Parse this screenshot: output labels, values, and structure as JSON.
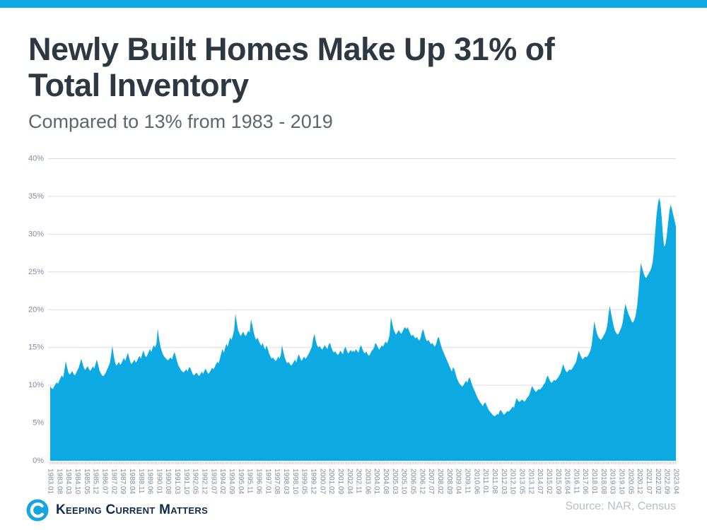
{
  "header": {
    "title_line1": "Newly Built Homes Make Up 31% of",
    "title_line2": "Total Inventory",
    "subtitle": "Compared to 13% from 1983 - 2019"
  },
  "chart_data": {
    "type": "area",
    "series_name": "Newly built homes share of total inventory",
    "unit": "%",
    "start": "1983.01",
    "end": "2023.04",
    "frequency": "monthly",
    "ylim": [
      0,
      40
    ],
    "grid": "horizontal",
    "legend": "none",
    "y_tick_labels": [
      "0%",
      "5%",
      "10%",
      "15%",
      "20%",
      "25%",
      "30%",
      "35%",
      "40%"
    ],
    "x_tick_interval_months": 7,
    "x_tick_labels": [
      "1983.01",
      "1983.08",
      "1984.03",
      "1984.10",
      "1985.05",
      "1985.12",
      "1986.07",
      "1987.02",
      "1987.09",
      "1988.04",
      "1988.11",
      "1989.06",
      "1990.01",
      "1990.08",
      "1991.03",
      "1991.10",
      "1992.05",
      "1992.12",
      "1993.07",
      "1994.02",
      "1994.09",
      "1995.04",
      "1995.11",
      "1996.06",
      "1997.01",
      "1997.08",
      "1998.03",
      "1998.10",
      "1999.05",
      "1999.12",
      "2000.07",
      "2001.02",
      "2001.09",
      "2002.04",
      "2002.11",
      "2003.06",
      "2004.01",
      "2004.08",
      "2005.03",
      "2005.10",
      "2006.05",
      "2006.12",
      "2007.07",
      "2008.02",
      "2008.09",
      "2009.04",
      "2009.11",
      "2010.06",
      "2011.01",
      "2011.08",
      "2012.03",
      "2012.10",
      "2013.05",
      "2013.12",
      "2014.07",
      "2015.02",
      "2015.09",
      "2016.04",
      "2016.11",
      "2017.06",
      "2018.01",
      "2018.08",
      "2019.03",
      "2019.10",
      "2020.05",
      "2020.12",
      "2021.07",
      "2022.02",
      "2022.09",
      "2023.04"
    ],
    "values": [
      9.9,
      9.6,
      9.5,
      9.8,
      10.1,
      10.4,
      10.2,
      10.6,
      11.0,
      11.3,
      11.0,
      12.0,
      13.2,
      12.4,
      11.7,
      11.4,
      11.6,
      11.9,
      11.5,
      11.3,
      11.6,
      12.0,
      12.3,
      12.9,
      13.5,
      12.9,
      12.3,
      12.0,
      12.3,
      12.5,
      12.1,
      11.9,
      12.2,
      12.5,
      12.2,
      12.8,
      13.4,
      12.7,
      12.0,
      11.6,
      11.3,
      11.2,
      11.4,
      11.7,
      12.1,
      12.5,
      12.9,
      14.0,
      15.2,
      14.0,
      13.1,
      12.6,
      12.8,
      13.1,
      12.7,
      12.9,
      13.3,
      13.6,
      13.2,
      13.8,
      14.3,
      13.6,
      13.0,
      12.8,
      13.1,
      13.4,
      13.0,
      13.2,
      13.6,
      13.9,
      13.5,
      14.1,
      14.6,
      14.0,
      13.7,
      14.0,
      14.4,
      14.8,
      14.4,
      14.9,
      15.3,
      15.0,
      15.5,
      17.5,
      16.2,
      15.2,
      14.6,
      14.1,
      13.8,
      13.6,
      13.4,
      13.3,
      13.5,
      13.7,
      13.4,
      14.0,
      14.4,
      13.8,
      13.1,
      12.6,
      12.3,
      12.0,
      11.8,
      11.7,
      11.9,
      12.1,
      11.8,
      12.3,
      12.4,
      11.9,
      11.5,
      11.3,
      11.5,
      11.7,
      11.4,
      11.2,
      11.5,
      11.8,
      11.5,
      11.9,
      12.2,
      11.8,
      11.5,
      11.7,
      12.0,
      12.3,
      12.1,
      12.4,
      12.8,
      13.1,
      12.9,
      13.5,
      14.2,
      14.8,
      14.3,
      14.9,
      15.5,
      15.1,
      15.8,
      16.3,
      16.0,
      16.6,
      17.3,
      19.5,
      18.3,
      17.3,
      16.9,
      16.5,
      16.8,
      17.1,
      16.7,
      16.5,
      16.9,
      17.2,
      17.0,
      18.7,
      18.0,
      17.1,
      16.4,
      16.0,
      16.3,
      15.9,
      15.5,
      15.2,
      15.6,
      15.1,
      14.7,
      15.3,
      14.8,
      14.2,
      13.8,
      13.5,
      13.7,
      13.4,
      13.2,
      13.4,
      13.8,
      13.5,
      14.0,
      15.3,
      14.4,
      13.7,
      13.2,
      12.9,
      13.1,
      12.8,
      12.6,
      12.8,
      13.1,
      13.4,
      13.0,
      13.7,
      14.1,
      13.6,
      13.2,
      13.5,
      13.8,
      13.5,
      13.7,
      14.0,
      14.3,
      14.7,
      15.1,
      16.2,
      16.8,
      15.9,
      15.3,
      15.0,
      15.2,
      14.9,
      14.7,
      15.0,
      15.3,
      15.0,
      14.8,
      15.4,
      15.6,
      15.0,
      14.6,
      14.3,
      14.5,
      14.2,
      14.0,
      14.2,
      14.6,
      14.3,
      14.1,
      14.8,
      15.1,
      14.6,
      14.2,
      14.4,
      14.7,
      14.4,
      14.6,
      14.4,
      14.8,
      14.5,
      14.3,
      15.0,
      15.3,
      14.8,
      14.4,
      14.2,
      14.5,
      14.1,
      13.9,
      14.1,
      14.5,
      14.7,
      15.0,
      15.6,
      15.4,
      15.0,
      14.7,
      15.0,
      15.3,
      15.1,
      15.5,
      15.8,
      15.5,
      16.0,
      16.6,
      19.0,
      18.2,
      17.4,
      17.0,
      16.7,
      17.0,
      17.3,
      17.0,
      16.8,
      17.1,
      17.5,
      17.7,
      17.4,
      17.7,
      17.2,
      16.8,
      16.5,
      16.7,
      16.4,
      16.2,
      16.4,
      16.1,
      15.9,
      16.3,
      17.1,
      17.4,
      16.7,
      16.1,
      15.8,
      16.0,
      15.7,
      15.4,
      15.6,
      15.3,
      15.1,
      15.5,
      16.2,
      16.4,
      15.7,
      15.1,
      14.6,
      14.2,
      13.8,
      13.4,
      13.0,
      12.6,
      12.2,
      11.8,
      12.4,
      12.1,
      11.5,
      10.9,
      10.5,
      10.2,
      10.0,
      9.8,
      10.0,
      10.3,
      10.6,
      10.3,
      10.9,
      11.0,
      10.4,
      9.9,
      9.5,
      9.1,
      8.7,
      8.3,
      8.0,
      7.7,
      7.5,
      7.2,
      7.6,
      7.7,
      7.3,
      6.9,
      6.6,
      6.4,
      6.2,
      6.0,
      5.9,
      6.0,
      6.2,
      6.1,
      6.6,
      6.7,
      6.4,
      6.1,
      6.2,
      6.4,
      6.6,
      6.5,
      6.7,
      6.9,
      7.2,
      7.0,
      7.7,
      8.3,
      8.0,
      7.8,
      7.9,
      8.1,
      8.0,
      7.8,
      8.0,
      8.3,
      8.5,
      8.8,
      9.4,
      9.9,
      9.6,
      9.3,
      9.1,
      9.3,
      9.5,
      9.4,
      9.6,
      9.8,
      10.1,
      10.3,
      10.9,
      11.3,
      10.9,
      10.5,
      10.3,
      10.5,
      10.7,
      10.6,
      10.8,
      11.0,
      11.3,
      11.6,
      12.2,
      12.8,
      12.3,
      11.9,
      11.7,
      11.9,
      12.1,
      12.0,
      12.2,
      12.5,
      12.8,
      13.1,
      13.9,
      14.6,
      14.1,
      13.7,
      13.4,
      13.6,
      13.8,
      13.7,
      13.9,
      14.2,
      14.6,
      15.3,
      16.9,
      18.5,
      17.6,
      16.9,
      16.4,
      16.2,
      16.0,
      16.2,
      16.5,
      16.8,
      17.2,
      17.9,
      19.4,
      20.5,
      19.5,
      18.6,
      17.8,
      17.2,
      16.9,
      16.7,
      16.9,
      17.3,
      17.7,
      18.4,
      19.7,
      20.8,
      20.2,
      19.6,
      19.2,
      18.8,
      18.4,
      18.3,
      18.7,
      19.3,
      20.4,
      22.1,
      24.4,
      26.2,
      25.5,
      24.9,
      24.4,
      24.2,
      24.5,
      24.8,
      25.1,
      25.5,
      26.2,
      27.8,
      30.2,
      32.4,
      33.9,
      34.8,
      34.2,
      32.3,
      29.8,
      28.3,
      28.7,
      29.9,
      31.5,
      33.1,
      33.9,
      33.3,
      32.5,
      31.8,
      31.0
    ]
  },
  "footer": {
    "brand": "Keeping Current Matters",
    "source": "Source: NAR, Census"
  },
  "colors": {
    "accent_blue": "#0da9e2",
    "title_dark": "#2d3942",
    "subtitle_gray": "#5a6770",
    "axis_label_gray": "#7d8c9e",
    "gridline_gray": "#d9dde1",
    "brand_navy": "#0e2b4b",
    "source_gray": "#b4bfc9"
  }
}
